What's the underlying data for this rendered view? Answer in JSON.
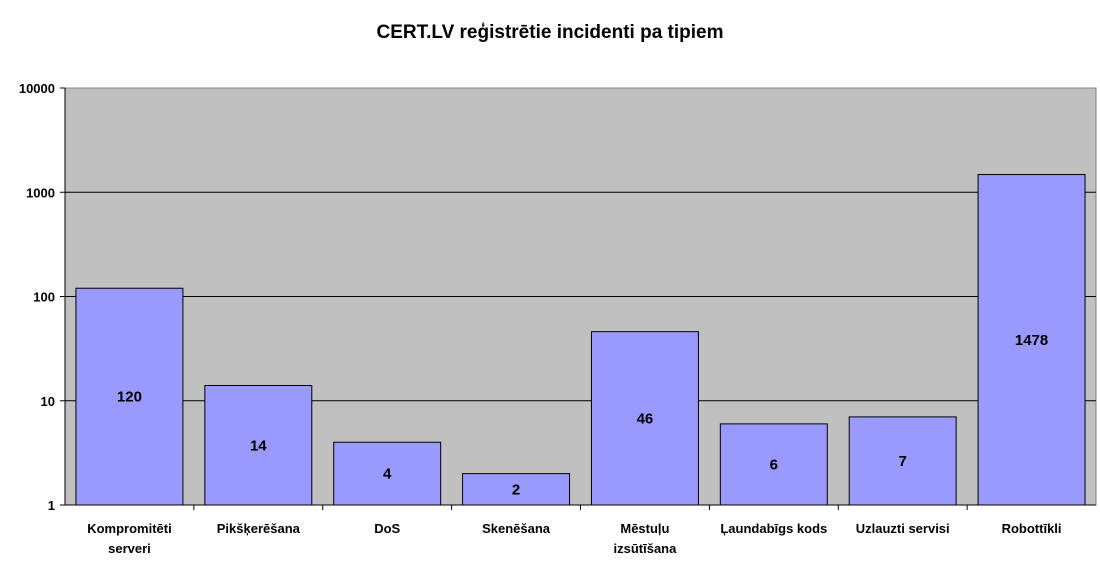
{
  "chart_data": {
    "type": "bar",
    "title": "CERT.LV reģistrētie incidenti pa tipiem",
    "categories": [
      [
        "Kompromitēti",
        "serveri"
      ],
      [
        "Pikšķerēšana"
      ],
      [
        "DoS"
      ],
      [
        "Skenēšana"
      ],
      [
        "Mēstuļu",
        "izsūtīšana"
      ],
      [
        "Ļaundabīgs kods"
      ],
      [
        "Uzlauzti servisi"
      ],
      [
        "Robottīkli"
      ]
    ],
    "values": [
      120,
      14,
      4,
      2,
      46,
      6,
      7,
      1478
    ],
    "data_labels": [
      "120",
      "14",
      "4",
      "2",
      "46",
      "6",
      "7",
      "1478"
    ],
    "y_scale": "log",
    "ylim": [
      1,
      10000
    ],
    "y_ticks": [
      1,
      10,
      100,
      1000,
      10000
    ],
    "y_tick_labels": [
      "1",
      "10",
      "100",
      "1000",
      "10000"
    ],
    "xlabel": "",
    "ylabel": "",
    "grid": true,
    "legend": "none",
    "colors": {
      "bar_fill": "#9999ff",
      "plot_background": "#c0c0c0",
      "bar_stroke": "#000000",
      "gridline": "#000000"
    }
  }
}
